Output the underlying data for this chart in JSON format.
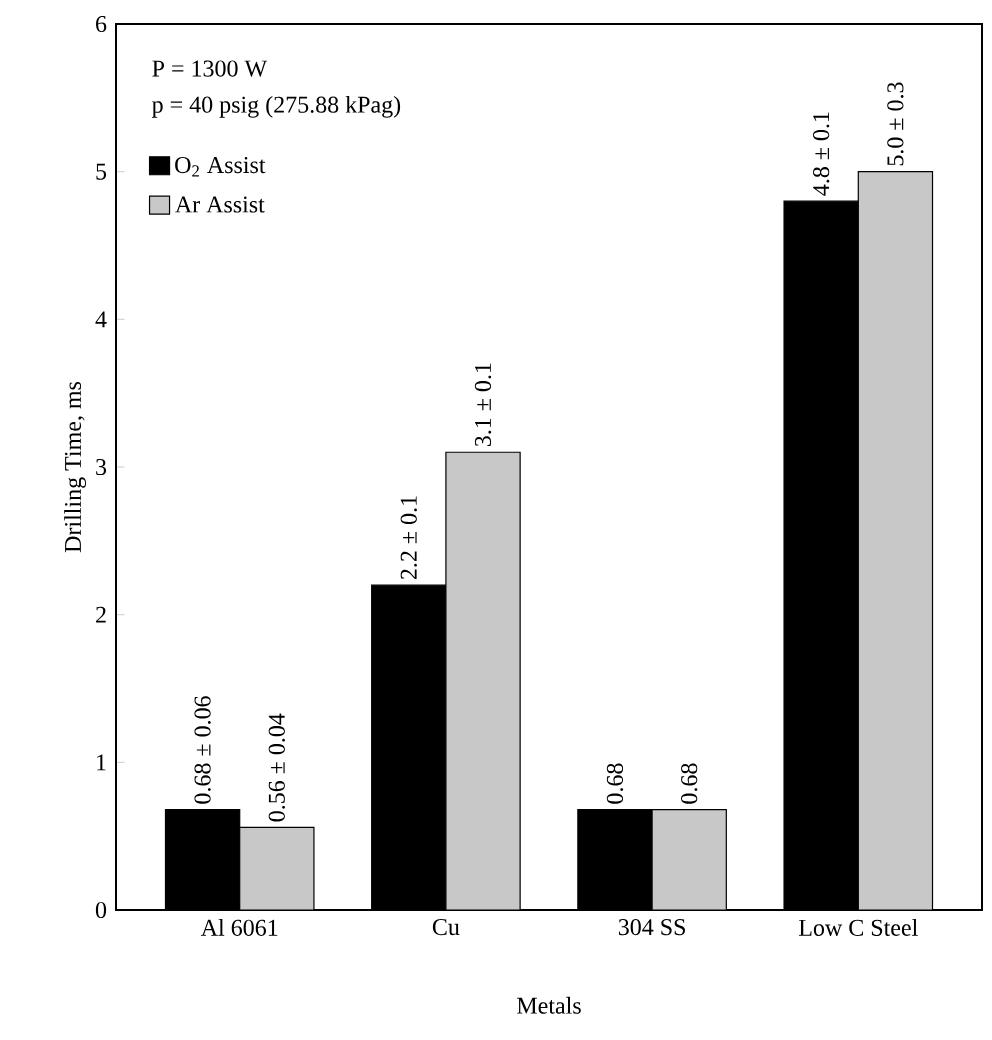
{
  "chart_data": {
    "type": "bar",
    "xlabel": "Metals",
    "ylabel": "Drilling Time, ms",
    "categories": [
      "Al 6061",
      "Cu",
      "304 SS",
      "Low C Steel"
    ],
    "series": [
      {
        "name": "O$_{2}$ Assist",
        "color": "#000000",
        "values": [
          0.68,
          2.2,
          0.68,
          4.8
        ],
        "value_labels": [
          "0.68 ± 0.06",
          "2.2 ± 0.1",
          "0.68",
          "4.8 ± 0.1"
        ]
      },
      {
        "name": "Ar Assist",
        "color": "#c8c8c8",
        "values": [
          0.56,
          3.1,
          0.68,
          5.0
        ],
        "value_labels": [
          "0.56 ± 0.04",
          "3.1 ± 0.1",
          "0.68",
          "5.0 ± 0.3"
        ]
      }
    ],
    "annotations": [
      "P = 1300 W",
      "p = 40 psig (275.88 kPag)"
    ],
    "ylim": [
      0,
      6
    ],
    "yticks": [
      0,
      1,
      2,
      3,
      4,
      5,
      6
    ],
    "legend": "top left",
    "grid": false
  }
}
